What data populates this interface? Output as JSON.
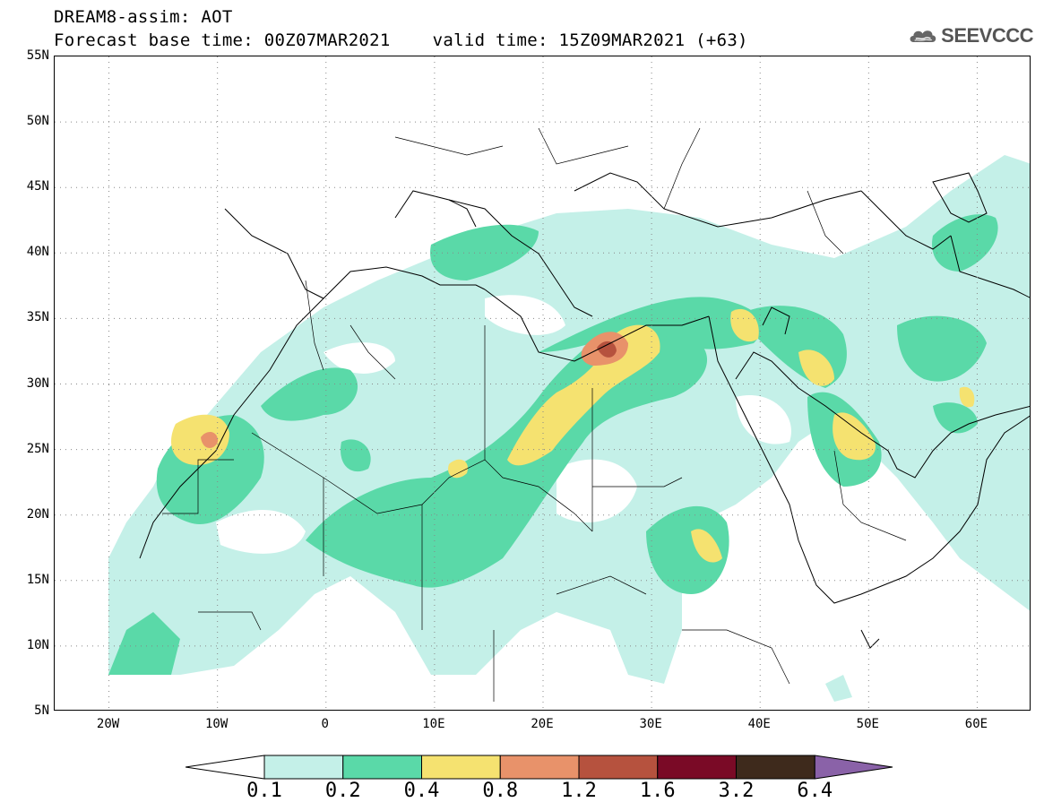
{
  "title": {
    "line1": "DREAM8-assim: AOT",
    "line2_base": "Forecast base time: 00Z07MAR2021",
    "line2_valid": "valid time: 15Z09MAR2021 (+63)"
  },
  "logo": {
    "text": "SEEVCCC",
    "icon": "cloud-icon"
  },
  "axes": {
    "lat_labels": [
      "55N",
      "50N",
      "45N",
      "40N",
      "35N",
      "30N",
      "25N",
      "20N",
      "15N",
      "10N",
      "5N"
    ],
    "lon_labels": [
      "20W",
      "10W",
      "0",
      "10E",
      "20E",
      "30E",
      "40E",
      "50E",
      "60E"
    ],
    "lat_range": [
      5,
      55
    ],
    "lon_range": [
      -25,
      65
    ],
    "grid": "dotted"
  },
  "colorbar": {
    "labels": [
      "0.1",
      "0.2",
      "0.4",
      "0.8",
      "1.2",
      "1.6",
      "3.2",
      "6.4"
    ],
    "colors": [
      "#ffffff",
      "#c4f0e8",
      "#5ad9a8",
      "#f5e270",
      "#e8926a",
      "#b6523e",
      "#7a0a26",
      "#3e2a1c",
      "#8a62a8"
    ]
  }
}
